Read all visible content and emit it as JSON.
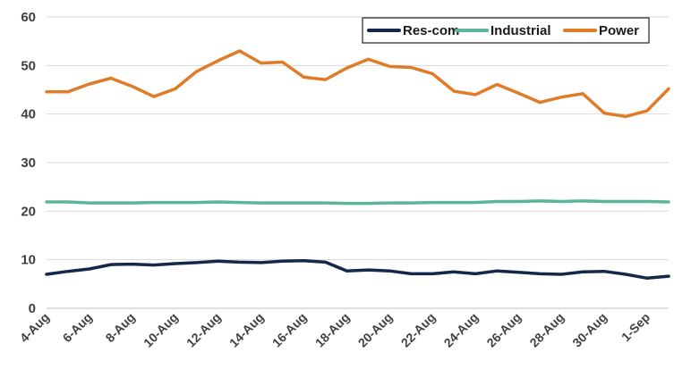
{
  "chart_data": {
    "type": "line",
    "title": "",
    "xlabel": "",
    "ylabel": "",
    "ylim": [
      0,
      60
    ],
    "yticks": [
      "0",
      "10",
      "20",
      "30",
      "40",
      "50",
      "60"
    ],
    "grid": true,
    "legend_position": "top-right",
    "x": [
      "4-Aug",
      "5-Aug",
      "6-Aug",
      "7-Aug",
      "8-Aug",
      "9-Aug",
      "10-Aug",
      "11-Aug",
      "12-Aug",
      "13-Aug",
      "14-Aug",
      "15-Aug",
      "16-Aug",
      "17-Aug",
      "18-Aug",
      "19-Aug",
      "20-Aug",
      "21-Aug",
      "22-Aug",
      "23-Aug",
      "24-Aug",
      "25-Aug",
      "26-Aug",
      "27-Aug",
      "28-Aug",
      "29-Aug",
      "30-Aug",
      "31-Aug",
      "1-Sep",
      "2-Sep"
    ],
    "xtick_labels": [
      "4-Aug",
      "6-Aug",
      "8-Aug",
      "10-Aug",
      "12-Aug",
      "14-Aug",
      "16-Aug",
      "18-Aug",
      "20-Aug",
      "22-Aug",
      "24-Aug",
      "26-Aug",
      "28-Aug",
      "30-Aug",
      "1-Sep"
    ],
    "series": [
      {
        "name": "Res-com",
        "color": "#14284b",
        "values": [
          7.0,
          7.6,
          8.1,
          9.0,
          9.1,
          8.9,
          9.2,
          9.4,
          9.7,
          9.5,
          9.4,
          9.7,
          9.8,
          9.5,
          7.7,
          7.9,
          7.7,
          7.1,
          7.1,
          7.5,
          7.1,
          7.7,
          7.4,
          7.1,
          7.0,
          7.5,
          7.6,
          7.0,
          6.2,
          6.6
        ]
      },
      {
        "name": "Industrial",
        "color": "#5bb59b",
        "values": [
          21.9,
          21.9,
          21.7,
          21.7,
          21.7,
          21.8,
          21.8,
          21.8,
          21.9,
          21.8,
          21.7,
          21.7,
          21.7,
          21.7,
          21.6,
          21.6,
          21.7,
          21.7,
          21.8,
          21.8,
          21.8,
          22.0,
          22.0,
          22.1,
          22.0,
          22.1,
          22.0,
          22.0,
          22.0,
          21.9
        ]
      },
      {
        "name": "Power",
        "color": "#e07b28",
        "values": [
          44.6,
          44.6,
          46.2,
          47.4,
          45.7,
          43.6,
          45.2,
          48.8,
          51.0,
          53.0,
          50.5,
          50.7,
          47.6,
          47.1,
          49.5,
          51.3,
          49.8,
          49.6,
          48.3,
          44.7,
          44.0,
          46.1,
          44.3,
          42.4,
          43.5,
          44.2,
          40.2,
          39.5,
          40.7,
          45.2
        ]
      }
    ]
  }
}
